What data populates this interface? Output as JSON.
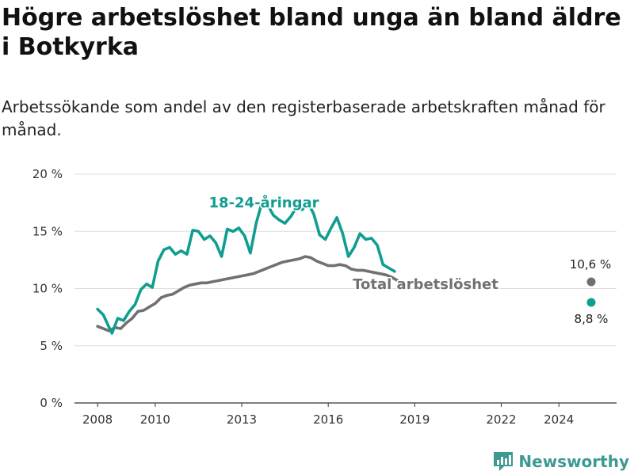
{
  "title": "Högre arbetslöshet bland unga än bland äldre i Botkyrka",
  "subtitle": "Arbetssökande som andel av den registerbaserade arbetskraften månad för månad.",
  "brand": {
    "name": "Newsworthy"
  },
  "chart_data": {
    "type": "line",
    "title": "Högre arbetslöshet bland unga än bland äldre i Botkyrka",
    "subtitle": "Arbetssökande som andel av den registerbaserade arbetskraften månad för månad.",
    "xlabel": "",
    "ylabel": "",
    "xlim": [
      2007.2,
      2026.0
    ],
    "ylim": [
      0,
      20
    ],
    "grid": true,
    "y_ticks": [
      {
        "value": 0,
        "label": "0 %"
      },
      {
        "value": 5,
        "label": "5 %"
      },
      {
        "value": 10,
        "label": "10 %"
      },
      {
        "value": 15,
        "label": "15 %"
      },
      {
        "value": 20,
        "label": "20 %"
      }
    ],
    "x_ticks": [
      {
        "value": 2008,
        "label": "2008"
      },
      {
        "value": 2010,
        "label": "2010"
      },
      {
        "value": 2013,
        "label": "2013"
      },
      {
        "value": 2016,
        "label": "2016"
      },
      {
        "value": 2019,
        "label": "2019"
      },
      {
        "value": 2022,
        "label": "2022"
      },
      {
        "value": 2024,
        "label": "2024"
      }
    ],
    "series": [
      {
        "name": "Total arbetslöshet",
        "color": "#737074",
        "end_label": "10,6 %",
        "points": [
          [
            2008.0,
            6.7
          ],
          [
            2008.2,
            6.5
          ],
          [
            2008.4,
            6.3
          ],
          [
            2008.6,
            6.6
          ],
          [
            2008.8,
            6.5
          ],
          [
            2009.0,
            7.0
          ],
          [
            2009.2,
            7.4
          ],
          [
            2009.4,
            8.0
          ],
          [
            2009.6,
            8.1
          ],
          [
            2009.8,
            8.4
          ],
          [
            2010.0,
            8.7
          ],
          [
            2010.2,
            9.2
          ],
          [
            2010.4,
            9.4
          ],
          [
            2010.6,
            9.5
          ],
          [
            2010.8,
            9.8
          ],
          [
            2011.0,
            10.1
          ],
          [
            2011.2,
            10.3
          ],
          [
            2011.4,
            10.4
          ],
          [
            2011.6,
            10.5
          ],
          [
            2011.8,
            10.5
          ],
          [
            2012.0,
            10.6
          ],
          [
            2012.2,
            10.7
          ],
          [
            2012.4,
            10.8
          ],
          [
            2012.6,
            10.9
          ],
          [
            2012.8,
            11.0
          ],
          [
            2013.0,
            11.1
          ],
          [
            2013.2,
            11.2
          ],
          [
            2013.4,
            11.3
          ],
          [
            2013.6,
            11.5
          ],
          [
            2013.8,
            11.7
          ],
          [
            2014.0,
            11.9
          ],
          [
            2014.2,
            12.1
          ],
          [
            2014.4,
            12.3
          ],
          [
            2014.6,
            12.4
          ],
          [
            2014.8,
            12.5
          ],
          [
            2015.0,
            12.6
          ],
          [
            2015.2,
            12.8
          ],
          [
            2015.4,
            12.7
          ],
          [
            2015.6,
            12.4
          ],
          [
            2015.8,
            12.2
          ],
          [
            2016.0,
            12.0
          ],
          [
            2016.2,
            12.0
          ],
          [
            2016.4,
            12.1
          ],
          [
            2016.6,
            12.0
          ],
          [
            2016.8,
            11.7
          ],
          [
            2017.0,
            11.6
          ],
          [
            2017.2,
            11.6
          ],
          [
            2017.4,
            11.5
          ],
          [
            2017.6,
            11.4
          ],
          [
            2017.8,
            11.3
          ],
          [
            2018.0,
            11.2
          ],
          [
            2018.2,
            11.0
          ],
          [
            2018.4,
            10.7
          ]
        ]
      },
      {
        "name": "18-24-åringar",
        "color": "#0f9e90",
        "end_label": "8,8 %",
        "points": [
          [
            2008.0,
            8.2
          ],
          [
            2008.2,
            7.7
          ],
          [
            2008.4,
            6.6
          ],
          [
            2008.5,
            6.1
          ],
          [
            2008.7,
            7.4
          ],
          [
            2008.9,
            7.2
          ],
          [
            2009.1,
            8.0
          ],
          [
            2009.3,
            8.6
          ],
          [
            2009.5,
            9.9
          ],
          [
            2009.7,
            10.4
          ],
          [
            2009.9,
            10.1
          ],
          [
            2010.1,
            12.4
          ],
          [
            2010.3,
            13.4
          ],
          [
            2010.5,
            13.6
          ],
          [
            2010.7,
            13.0
          ],
          [
            2010.9,
            13.3
          ],
          [
            2011.1,
            13.0
          ],
          [
            2011.3,
            15.1
          ],
          [
            2011.5,
            15.0
          ],
          [
            2011.7,
            14.3
          ],
          [
            2011.9,
            14.6
          ],
          [
            2012.1,
            14.0
          ],
          [
            2012.3,
            12.8
          ],
          [
            2012.5,
            15.2
          ],
          [
            2012.7,
            15.0
          ],
          [
            2012.9,
            15.3
          ],
          [
            2013.1,
            14.6
          ],
          [
            2013.3,
            13.1
          ],
          [
            2013.5,
            15.7
          ],
          [
            2013.7,
            17.5
          ],
          [
            2013.9,
            17.3
          ],
          [
            2014.1,
            16.4
          ],
          [
            2014.3,
            16.0
          ],
          [
            2014.5,
            15.7
          ],
          [
            2014.7,
            16.3
          ],
          [
            2014.9,
            17.1
          ],
          [
            2015.1,
            16.9
          ],
          [
            2015.3,
            17.5
          ],
          [
            2015.5,
            16.5
          ],
          [
            2015.7,
            14.7
          ],
          [
            2015.9,
            14.3
          ],
          [
            2016.1,
            15.3
          ],
          [
            2016.3,
            16.2
          ],
          [
            2016.5,
            14.8
          ],
          [
            2016.7,
            12.8
          ],
          [
            2016.9,
            13.6
          ],
          [
            2017.1,
            14.8
          ],
          [
            2017.3,
            14.3
          ],
          [
            2017.5,
            14.4
          ],
          [
            2017.7,
            13.8
          ],
          [
            2017.9,
            12.1
          ],
          [
            2018.1,
            11.8
          ],
          [
            2018.3,
            11.5
          ]
        ]
      }
    ]
  }
}
